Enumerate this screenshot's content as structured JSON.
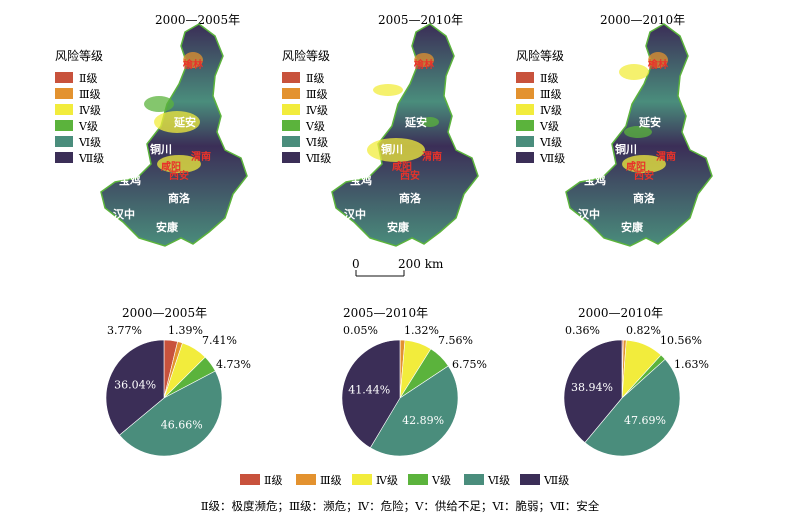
{
  "colors": {
    "II": "#c8523c",
    "III": "#e3922f",
    "IV": "#f2ec3c",
    "V": "#5bb33c",
    "VI": "#4a8d7c",
    "VII": "#3b2e57"
  },
  "legend_title": "风险等级",
  "risk_levels": [
    "Ⅱ级",
    "Ⅲ级",
    "Ⅳ级",
    "Ⅴ级",
    "Ⅵ级",
    "Ⅶ级"
  ],
  "maps": [
    {
      "title": "2000—2005年"
    },
    {
      "title": "2005—2010年"
    },
    {
      "title": "2000—2010年"
    }
  ],
  "map_cities": [
    "延安",
    "铜川",
    "宝鸡",
    "商洛",
    "汉中",
    "安康"
  ],
  "map_cities_red": [
    "榆林",
    "渭南",
    "咸阳",
    "西安"
  ],
  "scale_bar": {
    "start": "0",
    "end": "200 km"
  },
  "chart_data": {
    "type": "pie",
    "categories": [
      "Ⅱ级",
      "Ⅲ级",
      "Ⅳ级",
      "Ⅴ级",
      "Ⅵ级",
      "Ⅶ级"
    ],
    "series": [
      {
        "title": "2000—2005年",
        "values": [
          3.77,
          1.39,
          7.41,
          4.73,
          46.66,
          36.04
        ],
        "labels": [
          "3.77%",
          "1.39%",
          "7.41%",
          "4.73%",
          "46.66%",
          "36.04%"
        ]
      },
      {
        "title": "2005—2010年",
        "values": [
          0.05,
          1.32,
          7.56,
          6.75,
          42.89,
          41.44
        ],
        "labels": [
          "0.05%",
          "1.32%",
          "7.56%",
          "6.75%",
          "42.89%",
          "41.44%"
        ]
      },
      {
        "title": "2000—2010年",
        "values": [
          0.36,
          0.82,
          10.56,
          1.63,
          47.69,
          38.94
        ],
        "labels": [
          "0.36%",
          "0.82%",
          "10.56%",
          "1.63%",
          "47.69%",
          "38.94%"
        ]
      }
    ],
    "legend_placement": "bottom"
  },
  "footnote": "Ⅱ级：极度濒危；Ⅲ级：濒危；Ⅳ：危险；Ⅴ：供给不足；Ⅵ：脆弱；Ⅶ：安全"
}
